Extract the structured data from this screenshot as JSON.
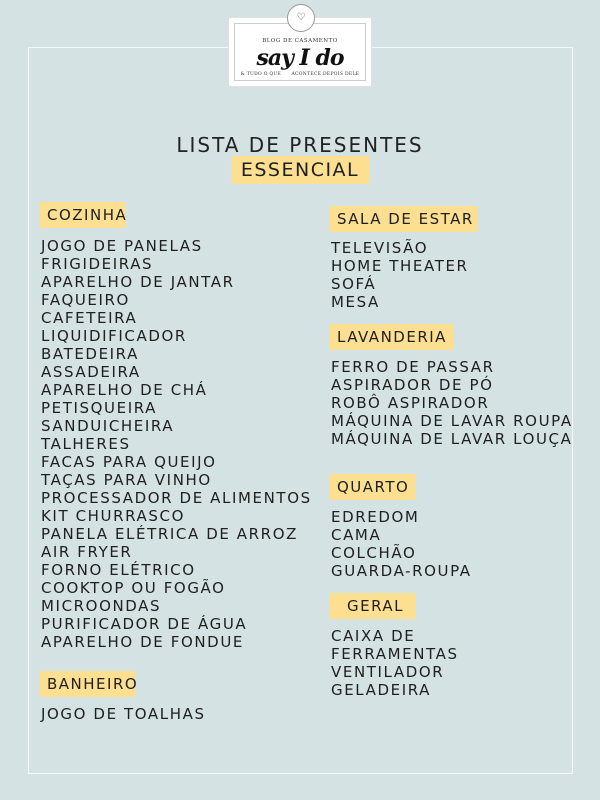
{
  "logo": {
    "seal_text": "SAY I DO",
    "blog_label": "BLOG DE CASAMENTO",
    "brand": "say I do",
    "tagline_left": "& TUDO O QUE",
    "tagline_right": "ACONTECE DEPOIS DELE"
  },
  "title": "LISTA DE PRESENTES",
  "subtitle": "ESSENCIAL",
  "colors": {
    "background": "#d5e2e3",
    "highlight": "#fddf91"
  },
  "sections": {
    "cozinha": {
      "label": "COZINHA",
      "items": [
        "JOGO DE PANELAS",
        "FRIGIDEIRAS",
        "APARELHO DE JANTAR",
        "FAQUEIRO",
        "CAFETEIRA",
        "LIQUIDIFICADOR",
        "BATEDEIRA",
        "ASSADEIRA",
        "APARELHO DE CHÁ",
        "PETISQUEIRA",
        "SANDUICHEIRA",
        "TALHERES",
        "FACAS PARA QUEIJO",
        "TAÇAS PARA VINHO",
        "PROCESSADOR DE ALIMENTOS",
        "KIT CHURRASCO",
        "PANELA ELÉTRICA DE ARROZ",
        "AIR FRYER",
        "FORNO ELÉTRICO",
        "COOKTOP OU FOGÃO",
        "MICROONDAS",
        "PURIFICADOR DE ÁGUA",
        "APARELHO DE FONDUE"
      ]
    },
    "banheiro": {
      "label": "BANHEIRO",
      "items": [
        "JOGO DE TOALHAS"
      ]
    },
    "sala": {
      "label": "SALA DE ESTAR",
      "items": [
        "TELEVISÃO",
        "HOME THEATER",
        "SOFÁ",
        "MESA"
      ]
    },
    "lavanderia": {
      "label": "LAVANDERIA",
      "items": [
        "FERRO DE PASSAR",
        "ASPIRADOR DE PÓ",
        "ROBÔ ASPIRADOR",
        "MÁQUINA DE LAVAR ROUPA",
        "MÁQUINA DE LAVAR LOUÇA"
      ]
    },
    "quarto": {
      "label": "QUARTO",
      "items": [
        "EDREDOM",
        "CAMA",
        "COLCHÃO",
        "GUARDA-ROUPA"
      ]
    },
    "geral": {
      "label": "GERAL",
      "items": [
        "CAIXA DE",
        "FERRAMENTAS",
        "VENTILADOR",
        "GELADEIRA"
      ]
    }
  }
}
